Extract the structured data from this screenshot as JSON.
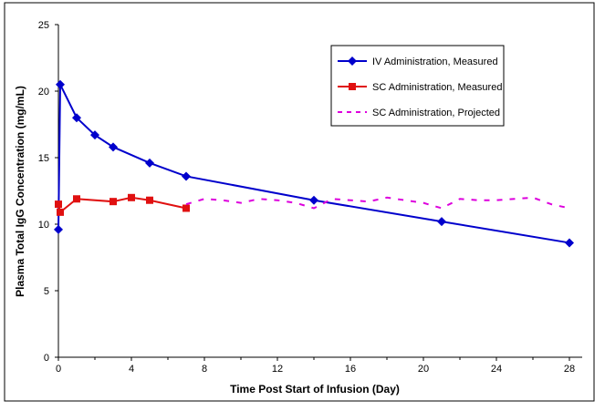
{
  "chart_data": {
    "type": "line",
    "title": "",
    "xlabel": "Time Post Start of Infusion (Day)",
    "ylabel": "Plasma Total IgG Concentration (mg/mL)",
    "xlim": [
      0,
      30
    ],
    "ylim": [
      0,
      25
    ],
    "xticks": [
      0,
      4,
      8,
      12,
      16,
      20,
      24,
      28
    ],
    "yticks": [
      0,
      5,
      10,
      15,
      20,
      25
    ],
    "grid": false,
    "legend_position": "top-right",
    "series": [
      {
        "name": "IV Administration, Measured",
        "color": "#0000cc",
        "marker": "diamond",
        "style": "solid",
        "x": [
          0,
          0.1,
          1,
          2,
          3,
          5,
          7,
          14,
          21,
          28
        ],
        "y": [
          9.6,
          20.5,
          18.0,
          16.7,
          15.8,
          14.6,
          13.6,
          11.8,
          10.2,
          8.6
        ]
      },
      {
        "name": "SC Administration, Measured",
        "color": "#e01010",
        "marker": "square",
        "style": "solid",
        "x": [
          0,
          0.1,
          1,
          3,
          4,
          5,
          7
        ],
        "y": [
          11.5,
          10.9,
          11.9,
          11.7,
          12.0,
          11.8,
          11.2
        ]
      },
      {
        "name": "SC Administration, Projected",
        "color": "#dd00dd",
        "marker": "none",
        "style": "dashed",
        "x": [
          7,
          8,
          9,
          10,
          11,
          12,
          13,
          14,
          15,
          16,
          17,
          18,
          19,
          20,
          21,
          22,
          23,
          24,
          25,
          26,
          27,
          28
        ],
        "y": [
          11.5,
          11.9,
          11.8,
          11.6,
          11.9,
          11.8,
          11.6,
          11.2,
          11.9,
          11.8,
          11.7,
          12.0,
          11.8,
          11.6,
          11.2,
          11.9,
          11.8,
          11.8,
          11.9,
          12.0,
          11.5,
          11.2
        ]
      }
    ]
  }
}
